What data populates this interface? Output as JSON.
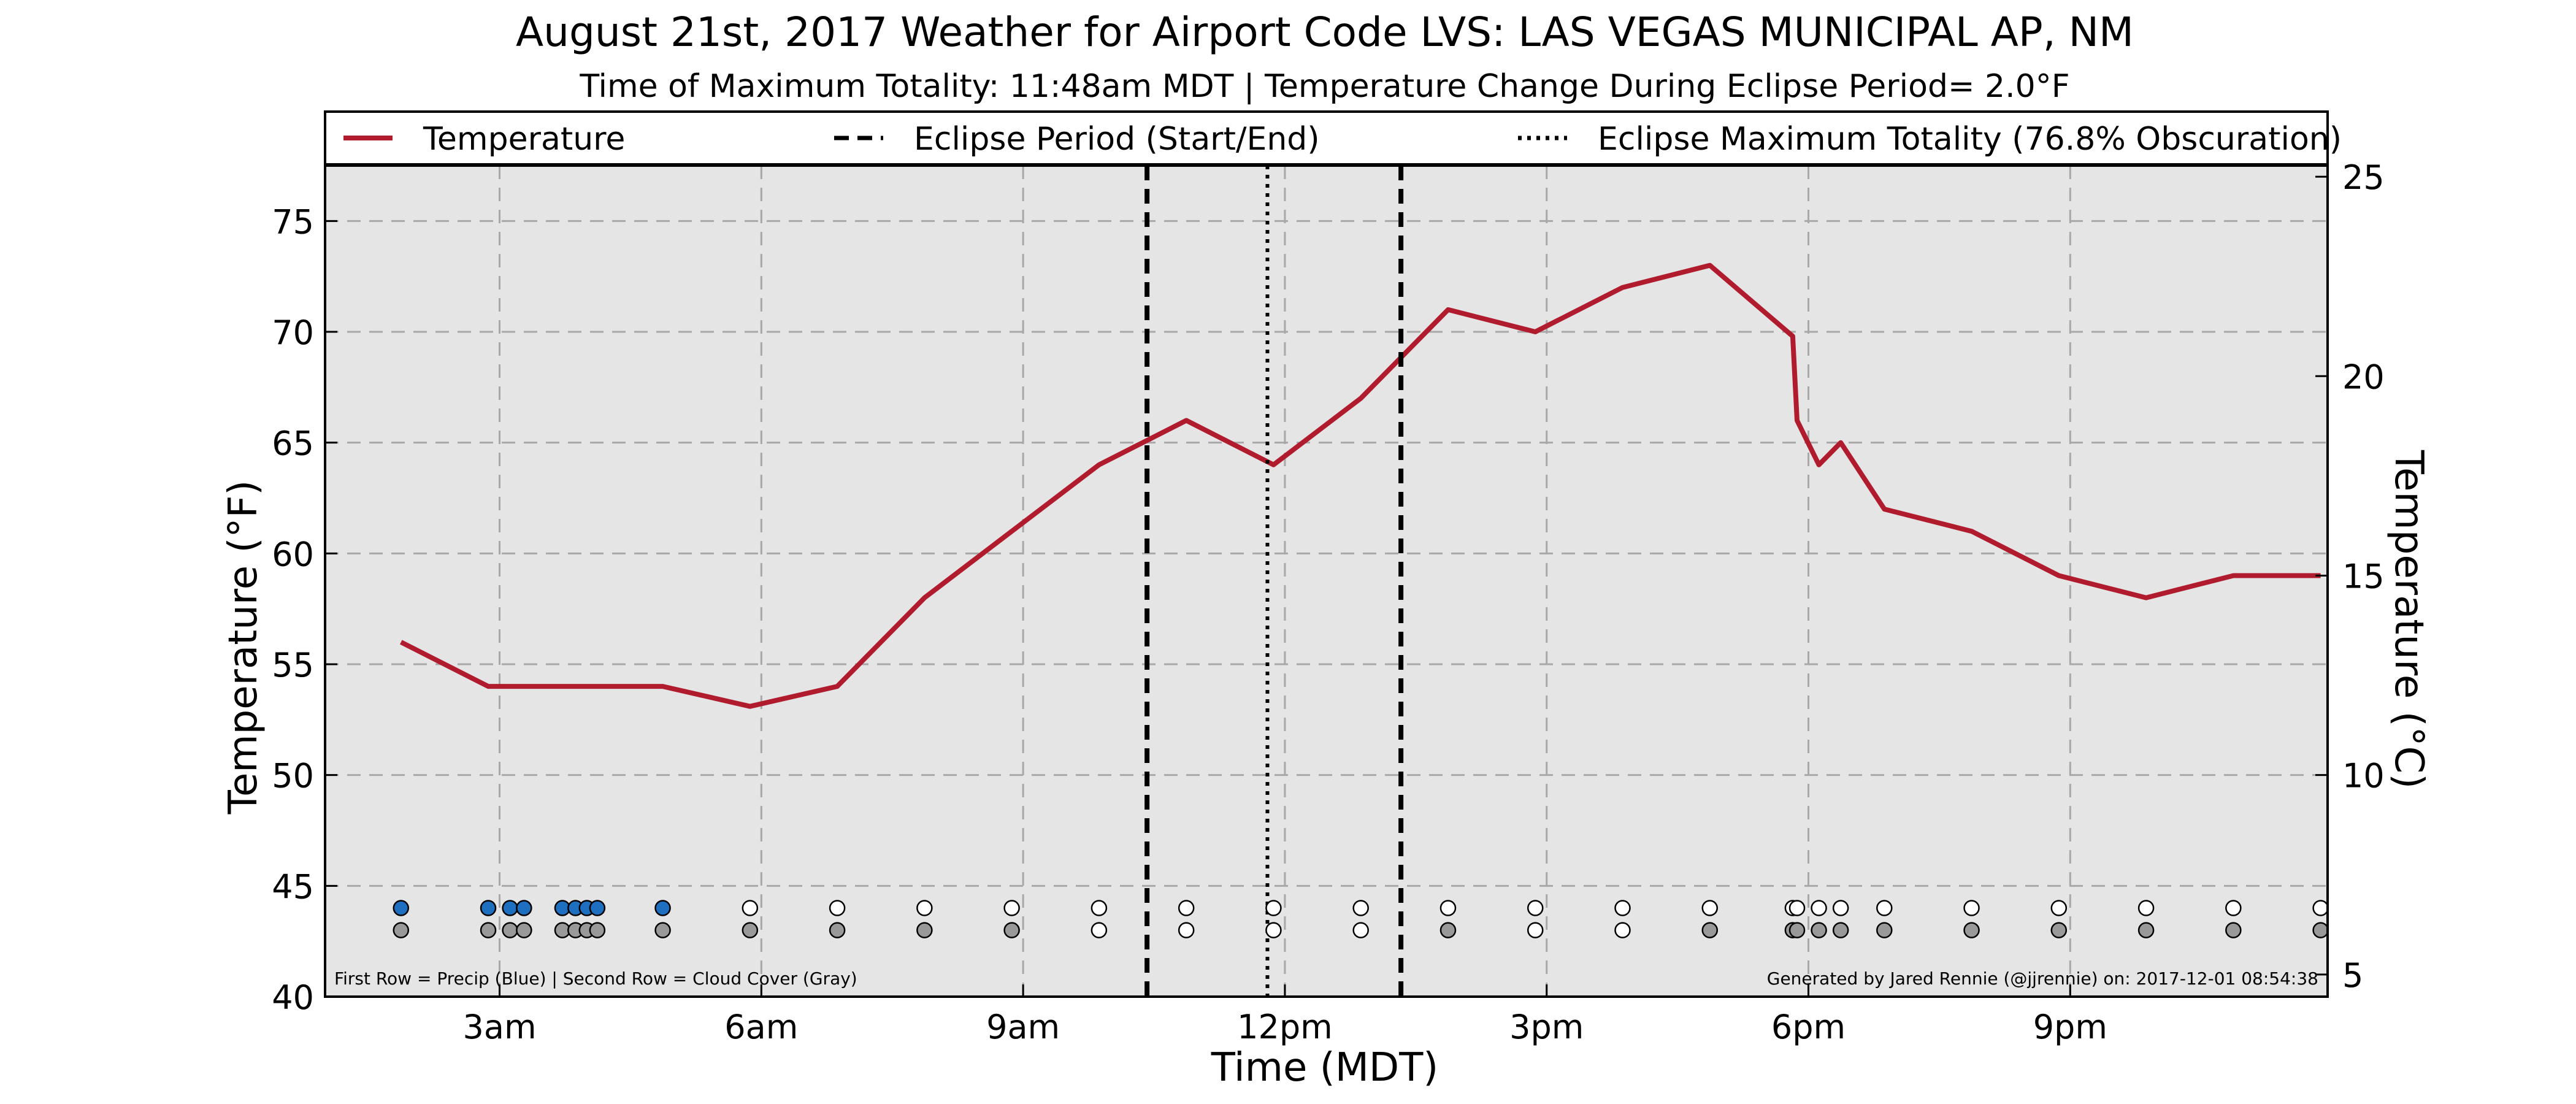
{
  "chart_data": {
    "type": "line",
    "title": "August 21st, 2017 Weather for Airport Code LVS: LAS VEGAS MUNICIPAL AP, NM",
    "subtitle": "Time of Maximum Totality: 11:48am MDT | Temperature Change During Eclipse Period= 2.0°F",
    "xlabel": "Time (MDT)",
    "ylabel": "Temperature (°F)",
    "ylabel_right": "Temperature (°C)",
    "xlim": [
      1,
      23.95
    ],
    "ylim": [
      40,
      77.5
    ],
    "ylim_right_c": [
      4.4444,
      25.2778
    ],
    "grid": true,
    "legend_position": "top",
    "x_ticks": [
      {
        "value": 3,
        "label": "3am"
      },
      {
        "value": 6,
        "label": "6am"
      },
      {
        "value": 9,
        "label": "9am"
      },
      {
        "value": 12,
        "label": "12pm"
      },
      {
        "value": 15,
        "label": "3pm"
      },
      {
        "value": 18,
        "label": "6pm"
      },
      {
        "value": 21,
        "label": "9pm"
      }
    ],
    "y_ticks": [
      40,
      45,
      50,
      55,
      60,
      65,
      70,
      75
    ],
    "y_ticks_right": [
      5,
      10,
      15,
      20,
      25
    ],
    "legend": [
      {
        "label": "Temperature",
        "style": "solid",
        "color": "#b01c2e"
      },
      {
        "label": "Eclipse Period (Start/End)",
        "style": "dashed",
        "color": "#000000"
      },
      {
        "label": "Eclipse Maximum Totality (76.8% Obscuration)",
        "style": "dotted",
        "color": "#000000"
      }
    ],
    "series": [
      {
        "name": "Temperature",
        "color": "#b01c2e",
        "x": [
          1.87,
          2.87,
          3.4,
          4.0,
          4.87,
          5.87,
          6.87,
          7.87,
          8.87,
          9.87,
          10.87,
          11.87,
          12.87,
          13.87,
          14.87,
          15.87,
          16.87,
          17.82,
          17.87,
          18.12,
          18.37,
          18.87,
          19.87,
          20.87,
          21.87,
          22.87,
          23.87
        ],
        "y": [
          56,
          54,
          54,
          54,
          54,
          53.1,
          54,
          58,
          61,
          64,
          66,
          64,
          67,
          71,
          70,
          72,
          73,
          69.8,
          66,
          64,
          65,
          62,
          61,
          59,
          58,
          59,
          59
        ]
      }
    ],
    "eclipse_start": 10.42,
    "eclipse_end": 13.33,
    "eclipse_max": 11.8,
    "precip_row_y": 44,
    "cloud_row_y": 43,
    "precip_points": [
      {
        "x": 1.87,
        "color": "#1f6fc0"
      },
      {
        "x": 2.87,
        "color": "#1f6fc0"
      },
      {
        "x": 3.12,
        "color": "#1f6fc0"
      },
      {
        "x": 3.28,
        "color": "#1f6fc0"
      },
      {
        "x": 3.72,
        "color": "#1f6fc0"
      },
      {
        "x": 3.87,
        "color": "#1f6fc0"
      },
      {
        "x": 4.0,
        "color": "#1f6fc0"
      },
      {
        "x": 4.12,
        "color": "#1f6fc0"
      },
      {
        "x": 4.87,
        "color": "#1f6fc0"
      },
      {
        "x": 5.87,
        "color": "#ffffff"
      },
      {
        "x": 6.87,
        "color": "#ffffff"
      },
      {
        "x": 7.87,
        "color": "#ffffff"
      },
      {
        "x": 8.87,
        "color": "#ffffff"
      },
      {
        "x": 9.87,
        "color": "#ffffff"
      },
      {
        "x": 10.87,
        "color": "#ffffff"
      },
      {
        "x": 11.87,
        "color": "#ffffff"
      },
      {
        "x": 12.87,
        "color": "#ffffff"
      },
      {
        "x": 13.87,
        "color": "#ffffff"
      },
      {
        "x": 14.87,
        "color": "#ffffff"
      },
      {
        "x": 15.87,
        "color": "#ffffff"
      },
      {
        "x": 16.87,
        "color": "#ffffff"
      },
      {
        "x": 17.82,
        "color": "#ffffff"
      },
      {
        "x": 17.87,
        "color": "#ffffff"
      },
      {
        "x": 18.12,
        "color": "#ffffff"
      },
      {
        "x": 18.37,
        "color": "#ffffff"
      },
      {
        "x": 18.87,
        "color": "#ffffff"
      },
      {
        "x": 19.87,
        "color": "#ffffff"
      },
      {
        "x": 20.87,
        "color": "#ffffff"
      },
      {
        "x": 21.87,
        "color": "#ffffff"
      },
      {
        "x": 22.87,
        "color": "#ffffff"
      },
      {
        "x": 23.87,
        "color": "#ffffff"
      }
    ],
    "cloud_points": [
      {
        "x": 1.87,
        "color": "#999999"
      },
      {
        "x": 2.87,
        "color": "#999999"
      },
      {
        "x": 3.12,
        "color": "#999999"
      },
      {
        "x": 3.28,
        "color": "#999999"
      },
      {
        "x": 3.72,
        "color": "#999999"
      },
      {
        "x": 3.87,
        "color": "#999999"
      },
      {
        "x": 4.0,
        "color": "#999999"
      },
      {
        "x": 4.12,
        "color": "#999999"
      },
      {
        "x": 4.87,
        "color": "#999999"
      },
      {
        "x": 5.87,
        "color": "#999999"
      },
      {
        "x": 6.87,
        "color": "#999999"
      },
      {
        "x": 7.87,
        "color": "#999999"
      },
      {
        "x": 8.87,
        "color": "#999999"
      },
      {
        "x": 9.87,
        "color": "#ffffff"
      },
      {
        "x": 10.87,
        "color": "#ffffff"
      },
      {
        "x": 11.87,
        "color": "#ffffff"
      },
      {
        "x": 12.87,
        "color": "#ffffff"
      },
      {
        "x": 13.87,
        "color": "#999999"
      },
      {
        "x": 14.87,
        "color": "#ffffff"
      },
      {
        "x": 15.87,
        "color": "#ffffff"
      },
      {
        "x": 16.87,
        "color": "#999999"
      },
      {
        "x": 17.82,
        "color": "#999999"
      },
      {
        "x": 17.87,
        "color": "#999999"
      },
      {
        "x": 18.12,
        "color": "#999999"
      },
      {
        "x": 18.37,
        "color": "#999999"
      },
      {
        "x": 18.87,
        "color": "#999999"
      },
      {
        "x": 19.87,
        "color": "#999999"
      },
      {
        "x": 20.87,
        "color": "#999999"
      },
      {
        "x": 21.87,
        "color": "#999999"
      },
      {
        "x": 22.87,
        "color": "#999999"
      },
      {
        "x": 23.87,
        "color": "#999999"
      }
    ],
    "footnote_left": "First Row = Precip (Blue) | Second Row = Cloud Cover (Gray)",
    "footnote_right": "Generated by Jared Rennie (@jjrennie) on: 2017-12-01 08:54:38",
    "colors": {
      "plot_bg": "#e5e5e5",
      "grid": "#a8a8a8",
      "temperature": "#b01c2e"
    }
  }
}
